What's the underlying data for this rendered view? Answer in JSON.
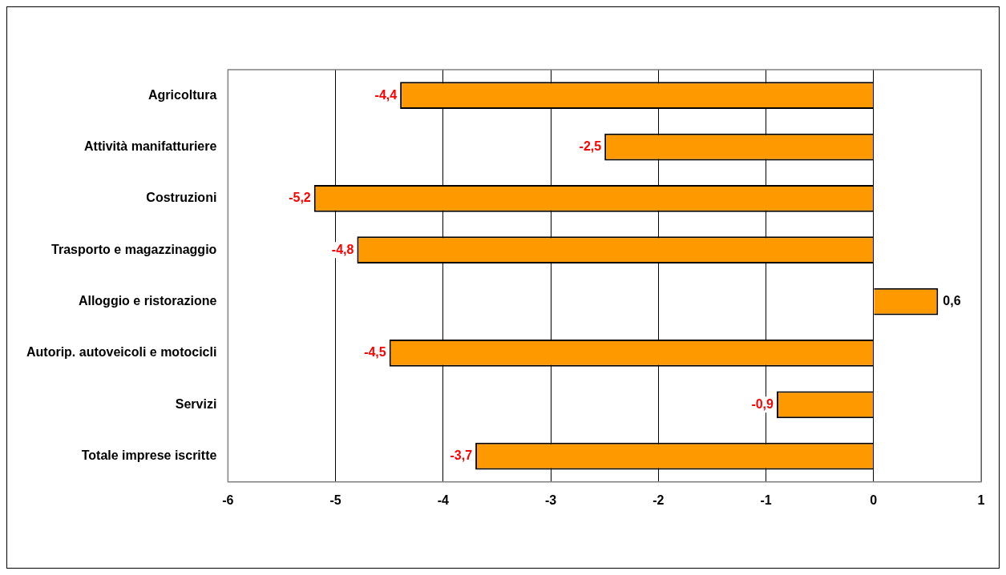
{
  "chart_data": {
    "type": "bar",
    "orientation": "horizontal",
    "categories": [
      "Agricoltura",
      "Attività manifatturiere",
      "Costruzioni",
      "Trasporto e magazzinaggio",
      "Alloggio e ristorazione",
      "Autorip. autoveicoli e motocicli",
      "Servizi",
      "Totale imprese iscritte"
    ],
    "values": [
      -4.4,
      -2.5,
      -5.2,
      -4.8,
      0.6,
      -4.5,
      -0.9,
      -3.7
    ],
    "value_labels": [
      "-4,4",
      "-2,5",
      "-5,2",
      "-4,8",
      "0,6",
      "-4,5",
      "-0,9",
      "-3,7"
    ],
    "color": "#ff9900",
    "xlim": [
      -6,
      1
    ],
    "xticks": [
      -6,
      -5,
      -4,
      -3,
      -2,
      -1,
      0,
      1
    ],
    "grid": "x",
    "legend": false
  }
}
